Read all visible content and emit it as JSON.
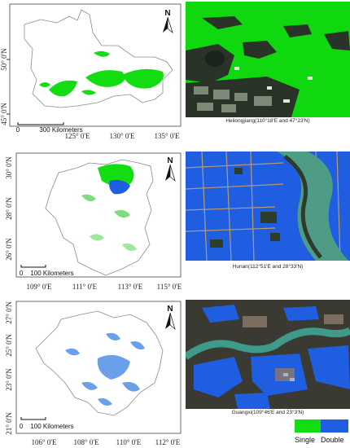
{
  "colors": {
    "single": "#11dd11",
    "double": "#1f5ee0",
    "water": "#3f9a8a"
  },
  "panels": [
    {
      "north": "N",
      "lat_ticks": [
        "50° 0'N",
        "45° 0'N"
      ],
      "lon_ticks": [
        "125° 0'E",
        "130° 0'E",
        "135° 0'E"
      ],
      "scale_zero": "0",
      "scale_label": "300 Kilometers",
      "caption": "Heilongjiang(110°18'E and 47°23'N)"
    },
    {
      "north": "N",
      "lat_ticks": [
        "30° 0'N",
        "28° 0'N",
        "26° 0'N"
      ],
      "lon_ticks": [
        "109° 0'E",
        "111° 0'E",
        "113° 0'E",
        "115° 0'E"
      ],
      "scale_zero": "0",
      "scale_label": "100 Kilometers",
      "caption": "Hunan(112°51'E and 28°33'N)"
    },
    {
      "north": "N",
      "lat_ticks": [
        "27° 0'N",
        "25° 0'N",
        "23° 0'N",
        "21° 0'N"
      ],
      "lon_ticks": [
        "106° 0'E",
        "108° 0'E",
        "110° 0'E",
        "112° 0'E"
      ],
      "scale_zero": "0",
      "scale_label": "100 Kilometers",
      "caption": "Guangxi(109°46'E and 23°3'N)"
    }
  ],
  "legend": {
    "single": "Single",
    "double": "Double"
  }
}
